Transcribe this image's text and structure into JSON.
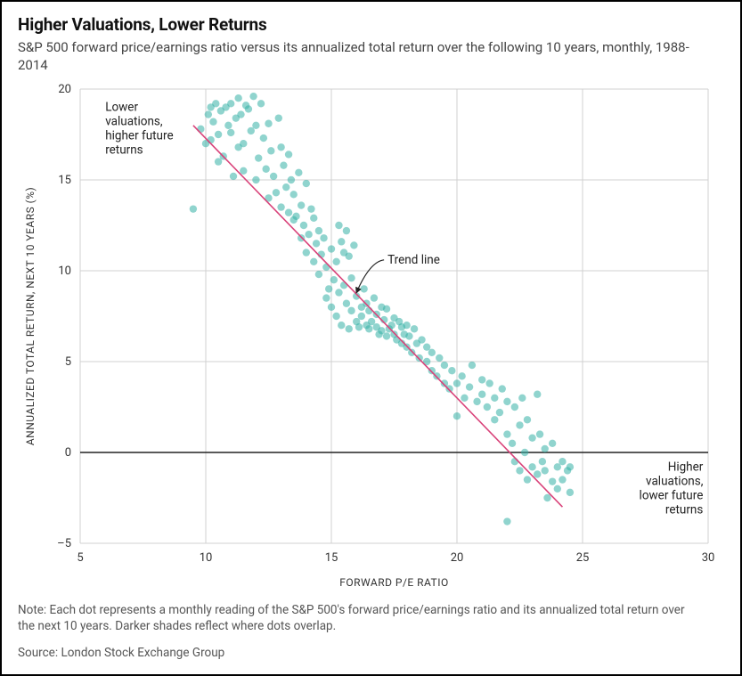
{
  "title": "Higher Valuations, Lower Returns",
  "subtitle": "S&P 500 forward price/earnings ratio versus its annualized total return over the following 10 years, monthly, 1988-2014",
  "note": "Note: Each dot represents a monthly reading of the S&P 500's forward price/earnings ratio and its annualized total return over the next 10 years. Darker shades reflect where dots overlap.",
  "source": "Source: London Stock Exchange Group",
  "chart": {
    "type": "scatter",
    "xlabel": "FORWARD P/E RATIO",
    "ylabel": "ANNUALIZED TOTAL RETURN, NEXT 10 YEARS (%)",
    "xlim": [
      5,
      30
    ],
    "ylim": [
      -5,
      20
    ],
    "xtick_step": 5,
    "ytick_step": 5,
    "grid_color": "#d0d0d0",
    "zero_line_color": "#222222",
    "background_color": "#ffffff",
    "marker_color": "#35b0a6",
    "marker_opacity": 0.55,
    "marker_radius": 4.2,
    "trend_line": {
      "color": "#d9437a",
      "width": 1.6,
      "x1": 9.5,
      "y1": 18.0,
      "x2": 24.2,
      "y2": -3.0
    },
    "trend_label": "Trend line",
    "annotation_upper": [
      "Lower",
      "valuations,",
      "higher future",
      "returns"
    ],
    "annotation_lower": [
      "Higher",
      "valuations,",
      "lower future",
      "returns"
    ],
    "points": [
      [
        9.5,
        13.4
      ],
      [
        9.8,
        17.8
      ],
      [
        10.0,
        17.0
      ],
      [
        10.1,
        18.6
      ],
      [
        10.2,
        19.0
      ],
      [
        10.2,
        17.2
      ],
      [
        10.3,
        18.2
      ],
      [
        10.4,
        19.2
      ],
      [
        10.5,
        17.5
      ],
      [
        10.5,
        16.0
      ],
      [
        10.6,
        18.8
      ],
      [
        10.7,
        16.3
      ],
      [
        10.8,
        19.0
      ],
      [
        10.9,
        18.0
      ],
      [
        11.0,
        17.6
      ],
      [
        11.0,
        19.2
      ],
      [
        11.1,
        15.2
      ],
      [
        11.2,
        18.4
      ],
      [
        11.3,
        19.5
      ],
      [
        11.3,
        16.8
      ],
      [
        11.4,
        18.6
      ],
      [
        11.5,
        17.0
      ],
      [
        11.5,
        15.5
      ],
      [
        11.6,
        19.1
      ],
      [
        11.7,
        18.9
      ],
      [
        11.8,
        17.7
      ],
      [
        11.9,
        19.6
      ],
      [
        12.0,
        18.0
      ],
      [
        12.0,
        15.0
      ],
      [
        12.1,
        16.2
      ],
      [
        12.2,
        19.2
      ],
      [
        12.3,
        17.3
      ],
      [
        12.4,
        15.6
      ],
      [
        12.5,
        18.1
      ],
      [
        12.5,
        14.0
      ],
      [
        12.6,
        16.6
      ],
      [
        12.7,
        15.2
      ],
      [
        12.8,
        14.3
      ],
      [
        12.9,
        18.4
      ],
      [
        13.0,
        16.8
      ],
      [
        13.0,
        13.5
      ],
      [
        13.1,
        15.8
      ],
      [
        13.2,
        14.6
      ],
      [
        13.3,
        13.2
      ],
      [
        13.3,
        16.4
      ],
      [
        13.4,
        15.0
      ],
      [
        13.5,
        12.8
      ],
      [
        13.5,
        14.2
      ],
      [
        13.6,
        13.0
      ],
      [
        13.7,
        15.4
      ],
      [
        13.8,
        11.8
      ],
      [
        13.8,
        13.6
      ],
      [
        13.9,
        12.5
      ],
      [
        14.0,
        14.8
      ],
      [
        14.0,
        11.0
      ],
      [
        14.1,
        12.0
      ],
      [
        14.2,
        13.4
      ],
      [
        14.3,
        10.5
      ],
      [
        14.3,
        12.9
      ],
      [
        14.4,
        11.5
      ],
      [
        14.5,
        12.2
      ],
      [
        14.5,
        9.8
      ],
      [
        14.6,
        10.9
      ],
      [
        14.7,
        11.8
      ],
      [
        14.8,
        8.5
      ],
      [
        14.8,
        10.2
      ],
      [
        14.9,
        9.0
      ],
      [
        15.0,
        11.2
      ],
      [
        15.0,
        8.0
      ],
      [
        15.1,
        9.5
      ],
      [
        15.2,
        10.5
      ],
      [
        15.2,
        7.5
      ],
      [
        15.3,
        12.5
      ],
      [
        15.3,
        8.8
      ],
      [
        15.4,
        11.6
      ],
      [
        15.4,
        7.0
      ],
      [
        15.5,
        9.2
      ],
      [
        15.5,
        11.0
      ],
      [
        15.6,
        8.2
      ],
      [
        15.6,
        12.2
      ],
      [
        15.7,
        6.8
      ],
      [
        15.7,
        10.8
      ],
      [
        15.8,
        9.6
      ],
      [
        15.8,
        7.8
      ],
      [
        15.9,
        11.4
      ],
      [
        16.0,
        8.6
      ],
      [
        16.0,
        7.2
      ],
      [
        16.1,
        6.9
      ],
      [
        16.2,
        8.0
      ],
      [
        16.2,
        7.5
      ],
      [
        16.3,
        9.0
      ],
      [
        16.4,
        7.0
      ],
      [
        16.4,
        8.2
      ],
      [
        16.5,
        6.8
      ],
      [
        16.5,
        7.8
      ],
      [
        16.6,
        7.2
      ],
      [
        16.7,
        8.5
      ],
      [
        16.8,
        6.9
      ],
      [
        16.8,
        7.6
      ],
      [
        16.9,
        6.5
      ],
      [
        17.0,
        8.0
      ],
      [
        17.0,
        6.7
      ],
      [
        17.1,
        7.3
      ],
      [
        17.2,
        6.4
      ],
      [
        17.2,
        7.9
      ],
      [
        17.3,
        6.8
      ],
      [
        17.4,
        7.0
      ],
      [
        17.5,
        6.5
      ],
      [
        17.5,
        7.4
      ],
      [
        17.6,
        6.2
      ],
      [
        17.7,
        7.2
      ],
      [
        17.8,
        6.0
      ],
      [
        17.8,
        6.9
      ],
      [
        17.9,
        6.5
      ],
      [
        18.0,
        7.0
      ],
      [
        18.0,
        5.8
      ],
      [
        18.1,
        6.4
      ],
      [
        18.2,
        5.5
      ],
      [
        18.3,
        6.8
      ],
      [
        18.4,
        6.0
      ],
      [
        18.5,
        5.2
      ],
      [
        18.6,
        6.2
      ],
      [
        18.8,
        5.0
      ],
      [
        18.8,
        5.8
      ],
      [
        19.0,
        4.5
      ],
      [
        19.0,
        5.5
      ],
      [
        19.2,
        4.2
      ],
      [
        19.3,
        5.2
      ],
      [
        19.5,
        3.8
      ],
      [
        19.5,
        4.8
      ],
      [
        19.7,
        3.5
      ],
      [
        19.8,
        4.5
      ],
      [
        20.0,
        3.8
      ],
      [
        20.0,
        2.0
      ],
      [
        20.2,
        4.2
      ],
      [
        20.3,
        3.0
      ],
      [
        20.5,
        3.6
      ],
      [
        20.6,
        4.8
      ],
      [
        20.8,
        2.8
      ],
      [
        21.0,
        3.2
      ],
      [
        21.0,
        4.0
      ],
      [
        21.2,
        2.5
      ],
      [
        21.3,
        3.8
      ],
      [
        21.5,
        1.8
      ],
      [
        21.5,
        3.0
      ],
      [
        21.7,
        2.2
      ],
      [
        21.8,
        3.5
      ],
      [
        22.0,
        1.0
      ],
      [
        22.0,
        2.8
      ],
      [
        22.0,
        -3.8
      ],
      [
        22.2,
        0.5
      ],
      [
        22.3,
        2.5
      ],
      [
        22.3,
        -0.5
      ],
      [
        22.5,
        1.5
      ],
      [
        22.5,
        -1.0
      ],
      [
        22.6,
        3.0
      ],
      [
        22.7,
        0.0
      ],
      [
        22.8,
        -1.5
      ],
      [
        22.8,
        1.8
      ],
      [
        23.0,
        0.8
      ],
      [
        23.0,
        -0.8
      ],
      [
        23.2,
        -1.2
      ],
      [
        23.2,
        3.2
      ],
      [
        23.3,
        1.0
      ],
      [
        23.4,
        -0.5
      ],
      [
        23.5,
        -1.0
      ],
      [
        23.5,
        0.2
      ],
      [
        23.6,
        -2.5
      ],
      [
        23.8,
        -1.6
      ],
      [
        23.8,
        0.5
      ],
      [
        24.0,
        -0.8
      ],
      [
        24.0,
        -2.0
      ],
      [
        24.2,
        -0.5
      ],
      [
        24.2,
        -1.5
      ],
      [
        24.4,
        -1.0
      ],
      [
        24.5,
        -2.2
      ],
      [
        24.5,
        -0.8
      ]
    ]
  }
}
